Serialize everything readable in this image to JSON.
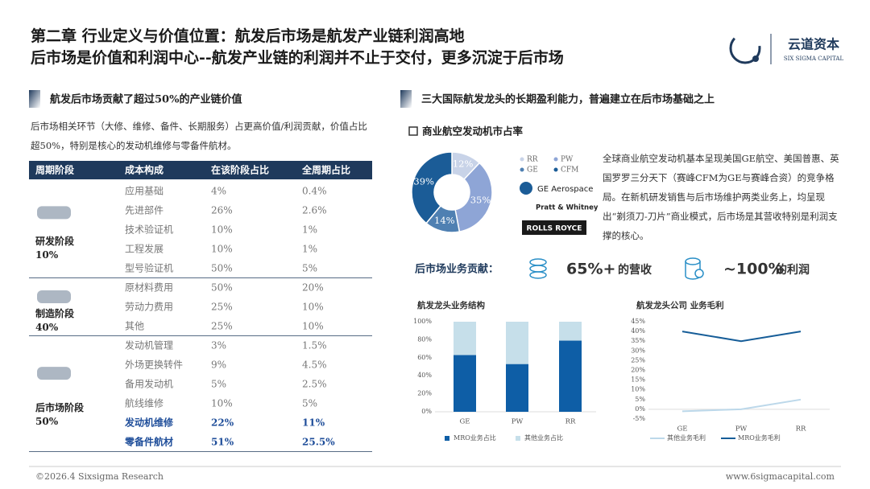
{
  "header": {
    "title": "第二章 行业定义与价值位置：航发后市场是航发产业链利润高地",
    "subtitle": "后市场是价值和利润中心--航发产业链的利润并不止于交付，更多沉淀于后市场",
    "logo_cn": "云道资本",
    "logo_en": "SIX SIGMA CAPITAL"
  },
  "left": {
    "section_title": "航发后市场贡献了超过50%的产业链价值",
    "description": "后市场相关环节（大修、维修、备件、长期服务）占更高价值/利润贡献，价值占比超50%，特别是核心的发动机维修与零备件航材。",
    "table": {
      "columns": [
        "周期阶段",
        "成本构成",
        "在该阶段占比",
        "全周期占比"
      ],
      "groups": [
        {
          "stage": "研发阶段",
          "share": "10%",
          "rows": [
            [
              "应用基础",
              "4%",
              "0.4%"
            ],
            [
              "先进部件",
              "26%",
              "2.6%"
            ],
            [
              "技术验证机",
              "10%",
              "1%"
            ],
            [
              "工程发展",
              "10%",
              "1%"
            ],
            [
              "型号验证机",
              "50%",
              "5%"
            ]
          ],
          "bold_rows": []
        },
        {
          "stage": "制造阶段",
          "share": "40%",
          "rows": [
            [
              "原材料费用",
              "50%",
              "20%"
            ],
            [
              "劳动力费用",
              "25%",
              "10%"
            ],
            [
              "其他",
              "25%",
              "10%"
            ]
          ],
          "bold_rows": []
        },
        {
          "stage": "后市场阶段",
          "share": "50%",
          "rows": [
            [
              "发动机管理",
              "3%",
              "1.5%"
            ],
            [
              "外场更换转件",
              "9%",
              "4.5%"
            ],
            [
              "备用发动机",
              "5%",
              "2.5%"
            ],
            [
              "航线维修",
              "10%",
              "5%"
            ],
            [
              "发动机维修",
              "22%",
              "11%"
            ],
            [
              "零备件航材",
              "51%",
              "25.5%"
            ]
          ],
          "bold_rows": [
            4,
            5
          ]
        }
      ]
    }
  },
  "right": {
    "section_title": "三大国际航发龙头的长期盈利能力，普遍建立在后市场基础之上",
    "paragraph": "全球商业航空发动机基本呈现美国GE航空、美国普惠、英国罗罗三分天下（赛峰CFM为GE与赛峰合资）的竞争格局。在新机研发销售与后市场维护两类业务上，均呈现出“剃须刀-刀片”商业模式，后市场是其营收特别是利润支撑的核心。",
    "logos": [
      "GE Aerospace",
      "Pratt & Whitney",
      "ROLLS ROYCE"
    ],
    "aftermarket": {
      "label": "后市场业务贡献：",
      "revenue_value": "65%+",
      "revenue_text": "的营收",
      "profit_value": "~100%",
      "profit_text": "的利润"
    }
  },
  "chart_data": [
    {
      "type": "pie",
      "title": "商业航空发动机市占率",
      "categories": [
        "RR",
        "PW",
        "GE",
        "CFM"
      ],
      "values": [
        12,
        35,
        14,
        39
      ],
      "value_labels": [
        "12%",
        "35%",
        "14%",
        "39%"
      ],
      "colors": [
        "#c8d3e8",
        "#8ea5d6",
        "#4f80b2",
        "#1b5c97"
      ],
      "donut": true
    },
    {
      "type": "bar",
      "stacked": true,
      "title": "航发龙头业务结构",
      "categories": [
        "GE",
        "PW",
        "RR"
      ],
      "series": [
        {
          "name": "MRO业务占比",
          "color": "#0e5ea6",
          "values": [
            63,
            53,
            79
          ]
        },
        {
          "name": "其他业务占比",
          "color": "#c6dfea",
          "values": [
            37,
            47,
            21
          ]
        }
      ],
      "ylim": [
        0,
        100
      ],
      "yticks": [
        {
          "value": 0,
          "label": "0%"
        },
        {
          "value": 20,
          "label": "20%"
        },
        {
          "value": 40,
          "label": "40%"
        },
        {
          "value": 60,
          "label": "60%"
        },
        {
          "value": 80,
          "label": "80%"
        },
        {
          "value": 100,
          "label": "100%"
        }
      ],
      "grid": false
    },
    {
      "type": "line",
      "title": "航发龙头公司 业务毛利",
      "categories": [
        "GE",
        "PW",
        "RR"
      ],
      "series": [
        {
          "name": "其他业务毛利",
          "color": "#bcd8ea",
          "values": [
            -1,
            0,
            5
          ]
        },
        {
          "name": "MRO业务毛利",
          "color": "#165d98",
          "values": [
            40,
            35,
            40
          ]
        }
      ],
      "ylim": [
        -5,
        45
      ],
      "yticks": [
        {
          "value": -5,
          "label": "-5%"
        },
        {
          "value": 0,
          "label": "0%"
        },
        {
          "value": 5,
          "label": "5%"
        },
        {
          "value": 10,
          "label": "10%"
        },
        {
          "value": 15,
          "label": "15%"
        },
        {
          "value": 20,
          "label": "20%"
        },
        {
          "value": 25,
          "label": "25%"
        },
        {
          "value": 30,
          "label": "30%"
        },
        {
          "value": 35,
          "label": "35%"
        },
        {
          "value": 40,
          "label": "40%"
        },
        {
          "value": 45,
          "label": "45%"
        }
      ],
      "grid": false
    }
  ],
  "footer": {
    "copyright": "©2026.4 Sixsigma Research",
    "website": "www.6sigmacapital.com"
  }
}
